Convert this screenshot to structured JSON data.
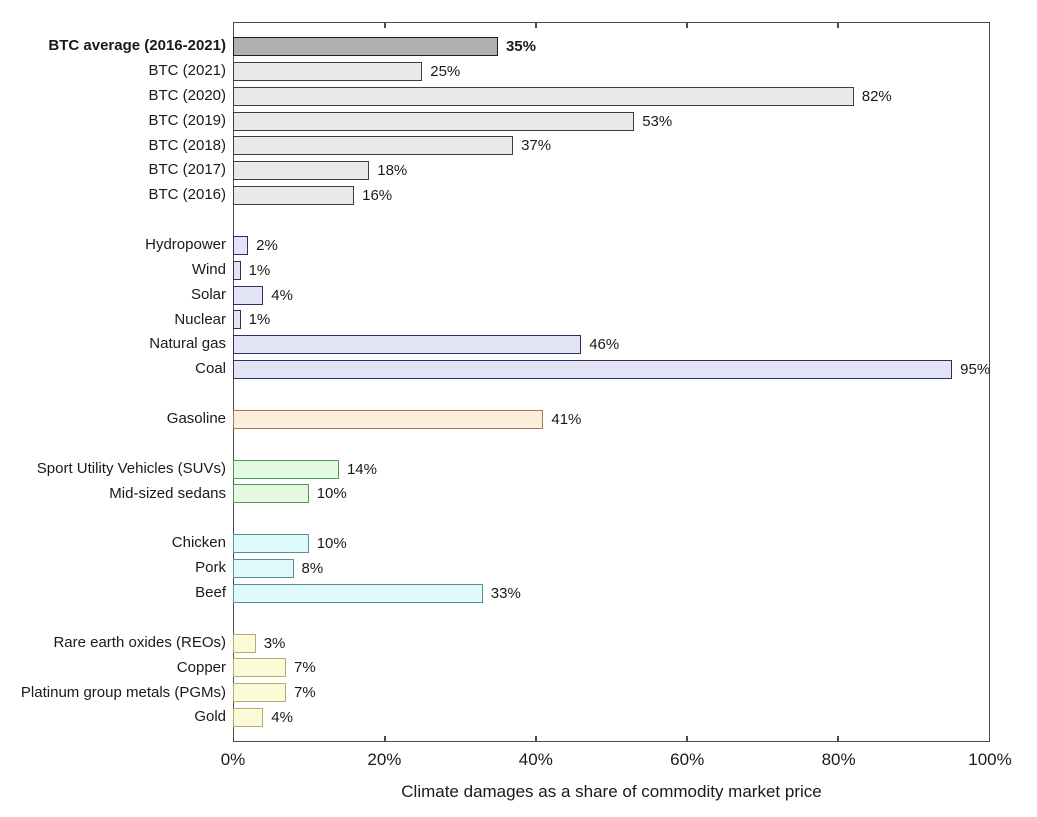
{
  "chart_data": {
    "type": "bar",
    "orientation": "horizontal",
    "title": "",
    "xlabel": "Climate damages as a share of commodity market price",
    "xlim": [
      0,
      100
    ],
    "grid": false,
    "legend": false,
    "axis_color": "#4d4d4d",
    "x_ticks": [
      {
        "value": 0,
        "label": "0%"
      },
      {
        "value": 20,
        "label": "20%"
      },
      {
        "value": 40,
        "label": "40%"
      },
      {
        "value": 60,
        "label": "60%"
      },
      {
        "value": 80,
        "label": "80%"
      },
      {
        "value": 100,
        "label": "100%"
      }
    ],
    "groups": {
      "btc_average": {
        "fill": "#b0b0b0",
        "stroke": "#1f1f1f"
      },
      "btc": {
        "fill": "#e9e9e9",
        "stroke": "#3f3f3f"
      },
      "energy": {
        "fill": "#e2e3f5",
        "stroke": "#2e2e63"
      },
      "gasoline": {
        "fill": "#fdeedc",
        "stroke": "#a57d4c"
      },
      "vehicles": {
        "fill": "#e4f8e2",
        "stroke": "#479e50"
      },
      "meat": {
        "fill": "#e0f9fb",
        "stroke": "#4f949b"
      },
      "metals": {
        "fill": "#fbfbd9",
        "stroke": "#b3b065"
      }
    },
    "rows": [
      {
        "label": "BTC average (2016-2021)",
        "value": 35,
        "value_label": "35%",
        "group": "btc_average",
        "bold": true
      },
      {
        "label": "BTC (2021)",
        "value": 25,
        "value_label": "25%",
        "group": "btc"
      },
      {
        "label": "BTC (2020)",
        "value": 82,
        "value_label": "82%",
        "group": "btc"
      },
      {
        "label": "BTC (2019)",
        "value": 53,
        "value_label": "53%",
        "group": "btc"
      },
      {
        "label": "BTC (2018)",
        "value": 37,
        "value_label": "37%",
        "group": "btc"
      },
      {
        "label": "BTC (2017)",
        "value": 18,
        "value_label": "18%",
        "group": "btc"
      },
      {
        "label": "BTC (2016)",
        "value": 16,
        "value_label": "16%",
        "group": "btc"
      },
      {
        "gap": true
      },
      {
        "label": "Hydropower",
        "value": 2,
        "value_label": "2%",
        "group": "energy"
      },
      {
        "label": "Wind",
        "value": 1,
        "value_label": "1%",
        "group": "energy"
      },
      {
        "label": "Solar",
        "value": 4,
        "value_label": "4%",
        "group": "energy"
      },
      {
        "label": "Nuclear",
        "value": 1,
        "value_label": "1%",
        "group": "energy"
      },
      {
        "label": "Natural gas",
        "value": 46,
        "value_label": "46%",
        "group": "energy"
      },
      {
        "label": "Coal",
        "value": 95,
        "value_label": "95%",
        "group": "energy"
      },
      {
        "gap": true
      },
      {
        "label": "Gasoline",
        "value": 41,
        "value_label": "41%",
        "group": "gasoline"
      },
      {
        "gap": true
      },
      {
        "label": "Sport Utility Vehicles (SUVs)",
        "value": 14,
        "value_label": "14%",
        "group": "vehicles"
      },
      {
        "label": "Mid-sized sedans",
        "value": 10,
        "value_label": "10%",
        "group": "vehicles"
      },
      {
        "gap": true
      },
      {
        "label": "Chicken",
        "value": 10,
        "value_label": "10%",
        "group": "meat"
      },
      {
        "label": "Pork",
        "value": 8,
        "value_label": "8%",
        "group": "meat"
      },
      {
        "label": "Beef",
        "value": 33,
        "value_label": "33%",
        "group": "meat"
      },
      {
        "gap": true
      },
      {
        "label": "Rare earth oxides (REOs)",
        "value": 3,
        "value_label": "3%",
        "group": "metals"
      },
      {
        "label": "Copper",
        "value": 7,
        "value_label": "7%",
        "group": "metals"
      },
      {
        "label": "Platinum group metals (PGMs)",
        "value": 7,
        "value_label": "7%",
        "group": "metals"
      },
      {
        "label": "Gold",
        "value": 4,
        "value_label": "4%",
        "group": "metals"
      }
    ]
  }
}
